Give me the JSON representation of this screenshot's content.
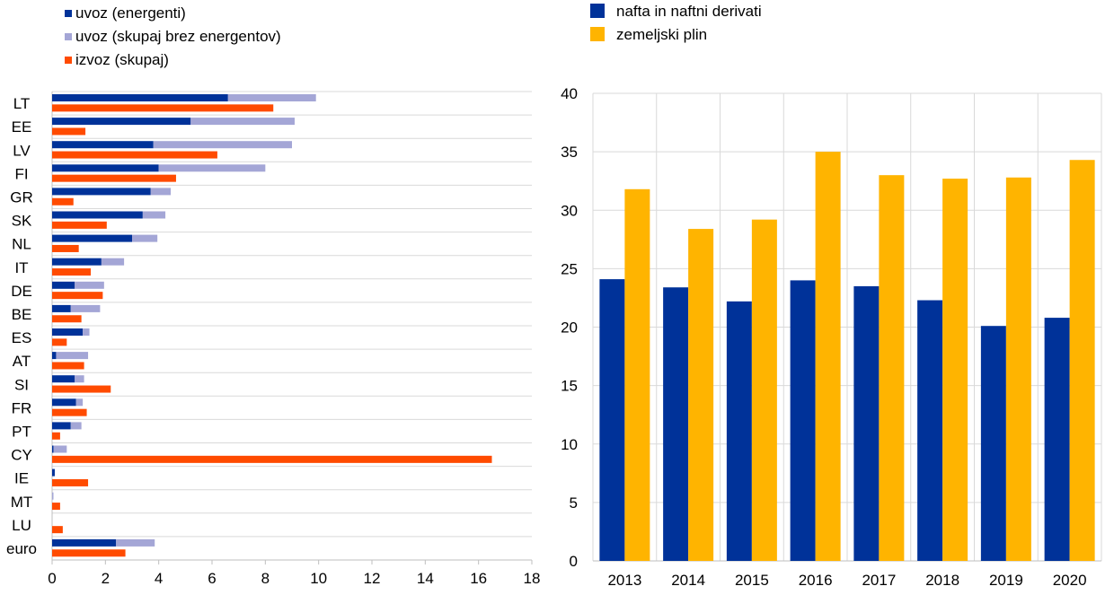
{
  "chart_data": [
    {
      "type": "bar",
      "orientation": "horizontal",
      "stacked_groups": [
        [
          "uvoz (energenti)",
          "uvoz (skupaj brez energentov)"
        ],
        [
          "izvoz (skupaj)"
        ]
      ],
      "categories": [
        "LT",
        "EE",
        "LV",
        "FI",
        "GR",
        "SK",
        "NL",
        "IT",
        "DE",
        "BE",
        "ES",
        "AT",
        "SI",
        "FR",
        "PT",
        "CY",
        "IE",
        "MT",
        "LU",
        "euro"
      ],
      "series": [
        {
          "name": "uvoz (energenti)",
          "color": "#003299",
          "values": [
            6.6,
            5.2,
            3.8,
            4.0,
            3.7,
            3.4,
            3.0,
            1.85,
            0.85,
            0.7,
            1.15,
            0.15,
            0.85,
            0.9,
            0.7,
            0.05,
            0.1,
            0.0,
            0.0,
            2.4
          ]
        },
        {
          "name": "uvoz (skupaj brez energentov)",
          "color": "#a4a6d6",
          "values": [
            3.3,
            3.9,
            5.2,
            4.0,
            0.75,
            0.85,
            0.95,
            0.85,
            1.1,
            1.1,
            0.25,
            1.2,
            0.35,
            0.25,
            0.4,
            0.5,
            0.0,
            0.05,
            0.0,
            1.45
          ]
        },
        {
          "name": "izvoz (skupaj)",
          "color": "#ff4b00",
          "values": [
            8.3,
            1.25,
            6.2,
            4.65,
            0.8,
            2.05,
            1.0,
            1.45,
            1.9,
            1.1,
            0.55,
            1.2,
            2.2,
            1.3,
            0.3,
            16.5,
            1.35,
            0.3,
            0.4,
            2.75
          ]
        }
      ],
      "xlim": [
        0,
        18
      ],
      "xticks": [
        "0",
        "2",
        "4",
        "6",
        "8",
        "10",
        "12",
        "14",
        "16",
        "18"
      ],
      "grid": "horizontal separators",
      "legend": "top-left"
    },
    {
      "type": "bar",
      "orientation": "vertical",
      "categories": [
        "2013",
        "2014",
        "2015",
        "2016",
        "2017",
        "2018",
        "2019",
        "2020"
      ],
      "series": [
        {
          "name": "nafta in naftni derivati",
          "color": "#003299",
          "values": [
            24.1,
            23.4,
            22.2,
            24.0,
            23.5,
            22.3,
            20.1,
            20.8
          ]
        },
        {
          "name": "zemeljski plin",
          "color": "#ffb400",
          "values": [
            31.8,
            28.4,
            29.2,
            35.0,
            33.0,
            32.7,
            32.8,
            34.3
          ]
        }
      ],
      "ylim": [
        0,
        40
      ],
      "yticks": [
        "0",
        "5",
        "10",
        "15",
        "20",
        "25",
        "30",
        "35",
        "40"
      ],
      "grid": "horizontal and vertical",
      "legend": "top-left"
    }
  ]
}
